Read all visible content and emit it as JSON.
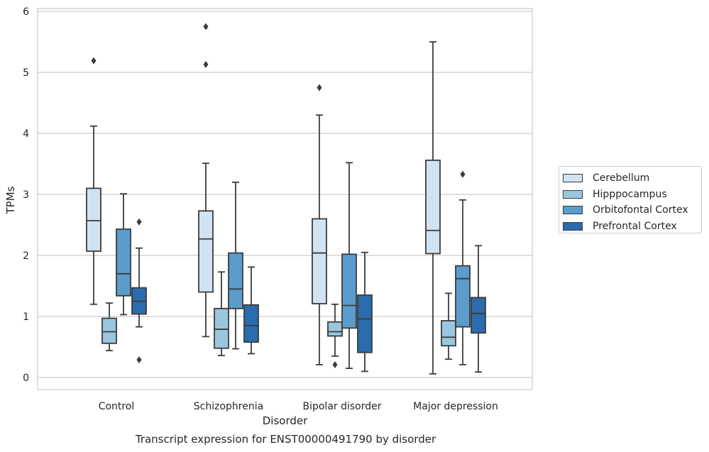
{
  "caption": "Transcript expression for ENST00000491790 by disorder",
  "chart_data": {
    "type": "box",
    "xlabel": "Disorder",
    "ylabel": "TPMs",
    "ylim": [
      -0.2,
      6.05
    ],
    "yticks": [
      0,
      1,
      2,
      3,
      4,
      5,
      6
    ],
    "categories": [
      "Control",
      "Schizophrenia",
      "Bipolar disorder",
      "Major depression"
    ],
    "grid": "horizontal",
    "legend_position": "right",
    "series": [
      {
        "name": "Cerebellum",
        "color": "#d1e2f1",
        "boxes": [
          {
            "whislo": 1.2,
            "q1": 2.07,
            "med": 2.57,
            "q3": 3.1,
            "whishi": 4.12,
            "fliers": [
              5.19
            ]
          },
          {
            "whislo": 0.67,
            "q1": 1.4,
            "med": 2.27,
            "q3": 2.73,
            "whishi": 3.51,
            "fliers": [
              5.13,
              5.75
            ]
          },
          {
            "whislo": 0.21,
            "q1": 1.21,
            "med": 2.04,
            "q3": 2.6,
            "whishi": 4.3,
            "fliers": [
              4.75
            ]
          },
          {
            "whislo": 0.06,
            "q1": 2.03,
            "med": 2.41,
            "q3": 3.56,
            "whishi": 5.5,
            "fliers": []
          }
        ]
      },
      {
        "name": "Hipppocampus",
        "color": "#9ac7df",
        "boxes": [
          {
            "whislo": 0.44,
            "q1": 0.56,
            "med": 0.75,
            "q3": 0.97,
            "whishi": 1.22,
            "fliers": []
          },
          {
            "whislo": 0.36,
            "q1": 0.48,
            "med": 0.79,
            "q3": 1.13,
            "whishi": 1.73,
            "fliers": []
          },
          {
            "whislo": 0.35,
            "q1": 0.68,
            "med": 0.75,
            "q3": 0.91,
            "whishi": 1.2,
            "fliers": [
              0.21
            ]
          },
          {
            "whislo": 0.3,
            "q1": 0.52,
            "med": 0.66,
            "q3": 0.93,
            "whishi": 1.38,
            "fliers": []
          }
        ]
      },
      {
        "name": "Orbitofontal Cortex",
        "color": "#5a9ccc",
        "boxes": [
          {
            "whislo": 1.03,
            "q1": 1.34,
            "med": 1.7,
            "q3": 2.43,
            "whishi": 3.01,
            "fliers": []
          },
          {
            "whislo": 0.47,
            "q1": 1.13,
            "med": 1.45,
            "q3": 2.04,
            "whishi": 3.2,
            "fliers": []
          },
          {
            "whislo": 0.15,
            "q1": 0.81,
            "med": 1.18,
            "q3": 2.02,
            "whishi": 3.52,
            "fliers": []
          },
          {
            "whislo": 0.21,
            "q1": 0.83,
            "med": 1.62,
            "q3": 1.83,
            "whishi": 2.91,
            "fliers": [
              3.33
            ]
          }
        ]
      },
      {
        "name": "Prefrontal Cortex",
        "color": "#2a6cad",
        "boxes": [
          {
            "whislo": 0.83,
            "q1": 1.04,
            "med": 1.25,
            "q3": 1.47,
            "whishi": 2.12,
            "fliers": [
              0.29,
              2.55
            ]
          },
          {
            "whislo": 0.39,
            "q1": 0.58,
            "med": 0.85,
            "q3": 1.19,
            "whishi": 1.81,
            "fliers": []
          },
          {
            "whislo": 0.1,
            "q1": 0.41,
            "med": 0.96,
            "q3": 1.35,
            "whishi": 2.05,
            "fliers": []
          },
          {
            "whislo": 0.09,
            "q1": 0.73,
            "med": 1.05,
            "q3": 1.31,
            "whishi": 2.16,
            "fliers": []
          }
        ]
      }
    ]
  }
}
